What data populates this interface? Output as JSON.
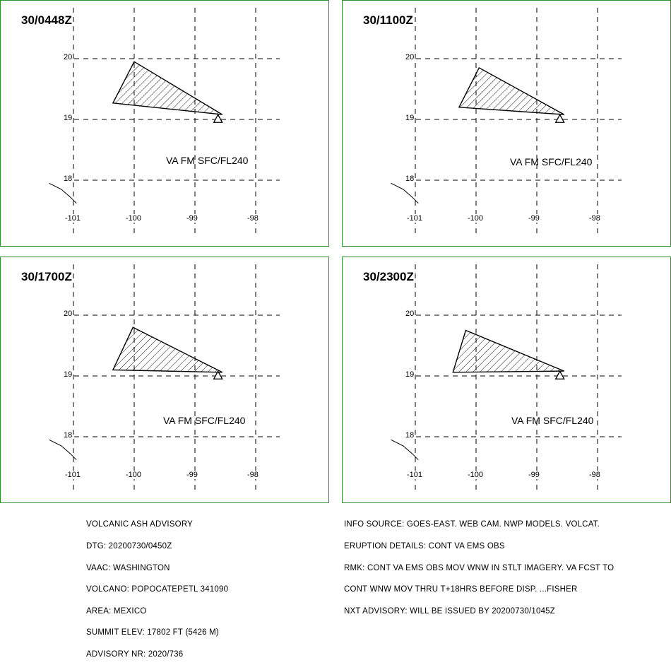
{
  "panels": [
    {
      "title": "30/0448Z",
      "va_label": "VA FM SFC/FL240",
      "ash_polygon": [
        [
          -100.0,
          19.95
        ],
        [
          -100.35,
          19.27
        ],
        [
          -98.55,
          19.08
        ]
      ]
    },
    {
      "title": "30/1100Z",
      "va_label": "VA FM SFC/FL240",
      "ash_polygon": [
        [
          -99.95,
          19.85
        ],
        [
          -100.28,
          19.2
        ],
        [
          -98.55,
          19.08
        ]
      ]
    },
    {
      "title": "30/1700Z",
      "va_label": "VA FM SFC/FL240",
      "ash_polygon": [
        [
          -100.02,
          19.8
        ],
        [
          -100.35,
          19.1
        ],
        [
          -98.55,
          19.06
        ]
      ]
    },
    {
      "title": "30/2300Z",
      "va_label": "VA FM SFC/FL240",
      "ash_polygon": [
        [
          -100.17,
          19.75
        ],
        [
          -100.38,
          19.06
        ],
        [
          -98.55,
          19.08
        ]
      ]
    }
  ],
  "map": {
    "lon_ticks": [
      "-101",
      "-100",
      "-99",
      "-98"
    ],
    "lat_ticks": [
      "20",
      "19",
      "18"
    ],
    "lon_values": [
      -101,
      -100,
      -99,
      -98
    ],
    "lat_values": [
      20,
      19,
      18
    ],
    "lon_range": [
      -101.35,
      -97.6
    ],
    "lat_range": [
      17.4,
      20.55
    ],
    "volcano": {
      "name": "POPOCATEPETL",
      "lon": -98.62,
      "lat": 19.02
    },
    "coastline": [
      [
        -101.4,
        17.95
      ],
      [
        -101.2,
        17.85
      ],
      [
        -101.05,
        17.72
      ],
      [
        -100.95,
        17.62
      ]
    ],
    "panel_border_color": "#2e8b2e",
    "grid_color": "#000000"
  },
  "advisory_left": [
    "VOLCANIC ASH ADVISORY",
    "DTG: 20200730/0450Z",
    "VAAC: WASHINGTON",
    "VOLCANO: POPOCATEPETL 341090",
    "AREA: MEXICO",
    "SUMMIT ELEV: 17802 FT (5426 M)",
    "ADVISORY NR: 2020/736"
  ],
  "advisory_right": [
    "INFO SOURCE: GOES-EAST. WEB CAM. NWP MODELS. VOLCAT.",
    "ERUPTION DETAILS: CONT VA EMS OBS",
    "RMK: CONT VA EMS OBS MOV WNW IN STLT IMAGERY. VA FCST TO",
    "CONT WNW MOV THRU T+18HRS BEFORE DISP. ...FISHER",
    "NXT ADVISORY: WILL BE ISSUED BY 20200730/1045Z"
  ]
}
